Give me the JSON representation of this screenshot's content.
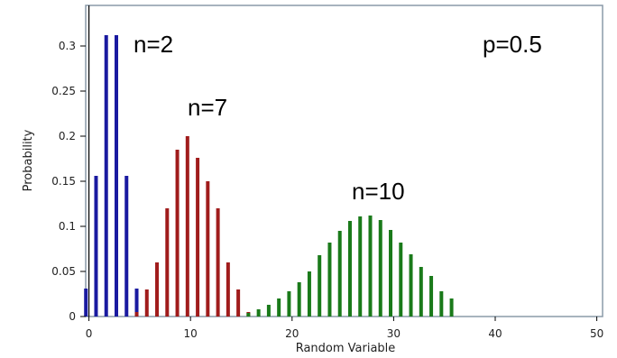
{
  "chart_data": {
    "type": "bar",
    "xlabel": "Random Variable",
    "ylabel": "Probability",
    "xlim": [
      0,
      50
    ],
    "ylim": [
      0,
      0.35
    ],
    "x_ticks": [
      "0",
      "10",
      "20",
      "30",
      "40",
      "50"
    ],
    "y_ticks": [
      "0",
      "0.05",
      "0.1",
      "0.15",
      "0.2",
      "0.25",
      "0.3"
    ],
    "grid": false,
    "annotations": [
      "n=2",
      "n=7",
      "n=10",
      "p=0.5"
    ],
    "series": [
      {
        "color": "#1a1aa0",
        "x": [
          -0.3,
          0.7,
          1.7,
          2.7,
          3.7,
          4.7
        ],
        "values": [
          0.031,
          0.156,
          0.312,
          0.312,
          0.156,
          0.031
        ]
      },
      {
        "color": "#a01c1c",
        "x": [
          4.7,
          5.7,
          6.7,
          7.7,
          8.7,
          9.7,
          10.7,
          11.7,
          12.7,
          13.7,
          14.7,
          15.7
        ],
        "values": [
          0.005,
          0.03,
          0.06,
          0.12,
          0.185,
          0.2,
          0.176,
          0.15,
          0.12,
          0.06,
          0.03,
          0.005
        ]
      },
      {
        "color": "#1a7a1a",
        "x": [
          15.7,
          16.7,
          17.7,
          18.7,
          19.7,
          20.7,
          21.7,
          22.7,
          23.7,
          24.7,
          25.7,
          26.7,
          27.7,
          28.7,
          29.7,
          30.7,
          31.7,
          32.7,
          33.7,
          34.7,
          35.7
        ],
        "values": [
          0.004,
          0.008,
          0.013,
          0.02,
          0.028,
          0.038,
          0.05,
          0.068,
          0.082,
          0.095,
          0.106,
          0.111,
          0.112,
          0.107,
          0.096,
          0.082,
          0.069,
          0.055,
          0.045,
          0.028,
          0.02
        ]
      }
    ]
  }
}
